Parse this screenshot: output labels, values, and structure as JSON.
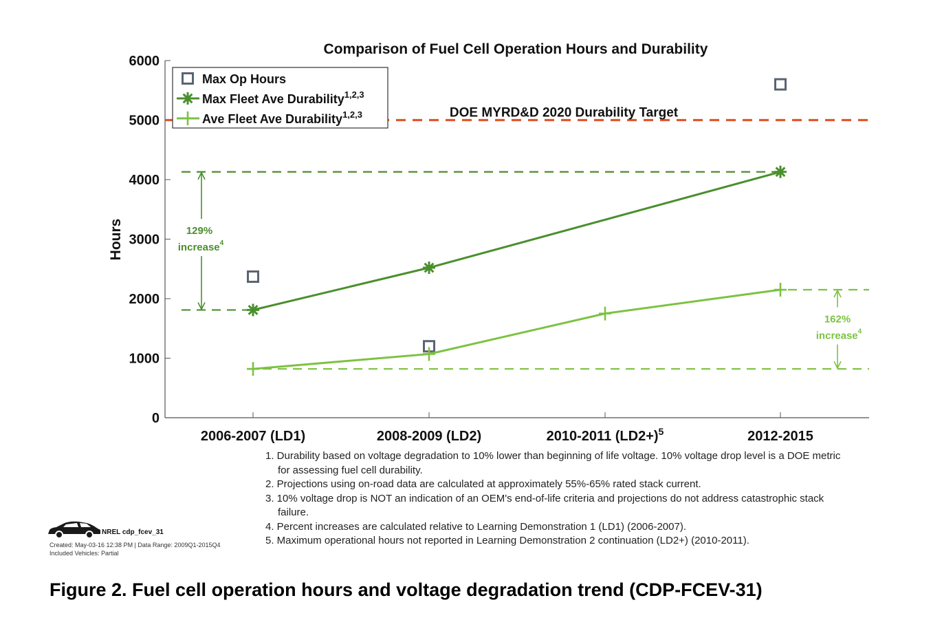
{
  "chart_data": {
    "type": "line",
    "title": "Comparison of Fuel Cell Operation Hours and Durability",
    "ylabel": "Hours",
    "xlabel": "",
    "ylim": [
      0,
      6000
    ],
    "yticks": [
      0,
      1000,
      2000,
      3000,
      4000,
      5000,
      6000
    ],
    "categories": [
      "2006-2007 (LD1)",
      "2008-2009 (LD2)",
      "2010-2011 (LD2+)",
      "2012-2015"
    ],
    "category_superscripts": [
      "",
      "",
      "5",
      ""
    ],
    "legend_position": "top-left",
    "series": [
      {
        "name": "Max Op Hours",
        "marker": "square",
        "line": false,
        "color": "#5a6472",
        "values": [
          2370,
          1200,
          null,
          5600
        ]
      },
      {
        "name": "Max Fleet Ave Durability",
        "superscript": "1,2,3",
        "marker": "asterisk",
        "line": true,
        "color": "#4a8f2c",
        "values": [
          1810,
          2520,
          null,
          4130
        ]
      },
      {
        "name": "Ave Fleet Ave Durability",
        "superscript": "1,2,3",
        "marker": "plus",
        "line": true,
        "color": "#7cc242",
        "values": [
          820,
          1070,
          1750,
          2150
        ]
      }
    ],
    "reference_lines": [
      {
        "label": "DOE MYRD&D 2020 Durability Target",
        "y": 5000,
        "color": "#e0572b",
        "dash": true
      },
      {
        "label": "",
        "y": 4130,
        "color": "#4a8f2c",
        "dash": true
      },
      {
        "label": "",
        "y": 1810,
        "color": "#4a8f2c",
        "dash": true
      },
      {
        "label": "",
        "y": 2150,
        "color": "#7cc242",
        "dash": true
      },
      {
        "label": "",
        "y": 820,
        "color": "#7cc242",
        "dash": true
      }
    ],
    "annotations": [
      {
        "line1": "129%",
        "line2": "increase",
        "superscript": "4",
        "from": 1810,
        "to": 4130,
        "color": "#4a8f2c",
        "side": "left"
      },
      {
        "line1": "162%",
        "line2": "increase",
        "superscript": "4",
        "from": 820,
        "to": 2150,
        "color": "#7cc242",
        "side": "right"
      }
    ],
    "grid": false
  },
  "footnotes": [
    "1. Durability based on voltage degradation to 10% lower than beginning of life voltage. 10% voltage drop level is a DOE metric for assessing fuel cell durability.",
    "2. Projections using on-road data are calculated at approximately 55%-65% rated stack current.",
    "3. 10% voltage drop is NOT an indication of an OEM's end-of-life criteria and projections do not address catastrophic stack failure.",
    "4. Percent increases are calculated relative to Learning Demonstration 1 (LD1) (2006-2007).",
    "5. Maximum operational hours not reported in Learning Demonstration 2 continuation (LD2+) (2010-2011)."
  ],
  "source": {
    "title": "NREL cdp_fcev_31",
    "created": "Created: May-03-16 12:38 PM | Data Range: 2009Q1-2015Q4",
    "vehicles": "Included Vehicles: Partial"
  },
  "caption": "Figure 2. Fuel cell operation hours and voltage degradation trend (CDP-FCEV-31)"
}
